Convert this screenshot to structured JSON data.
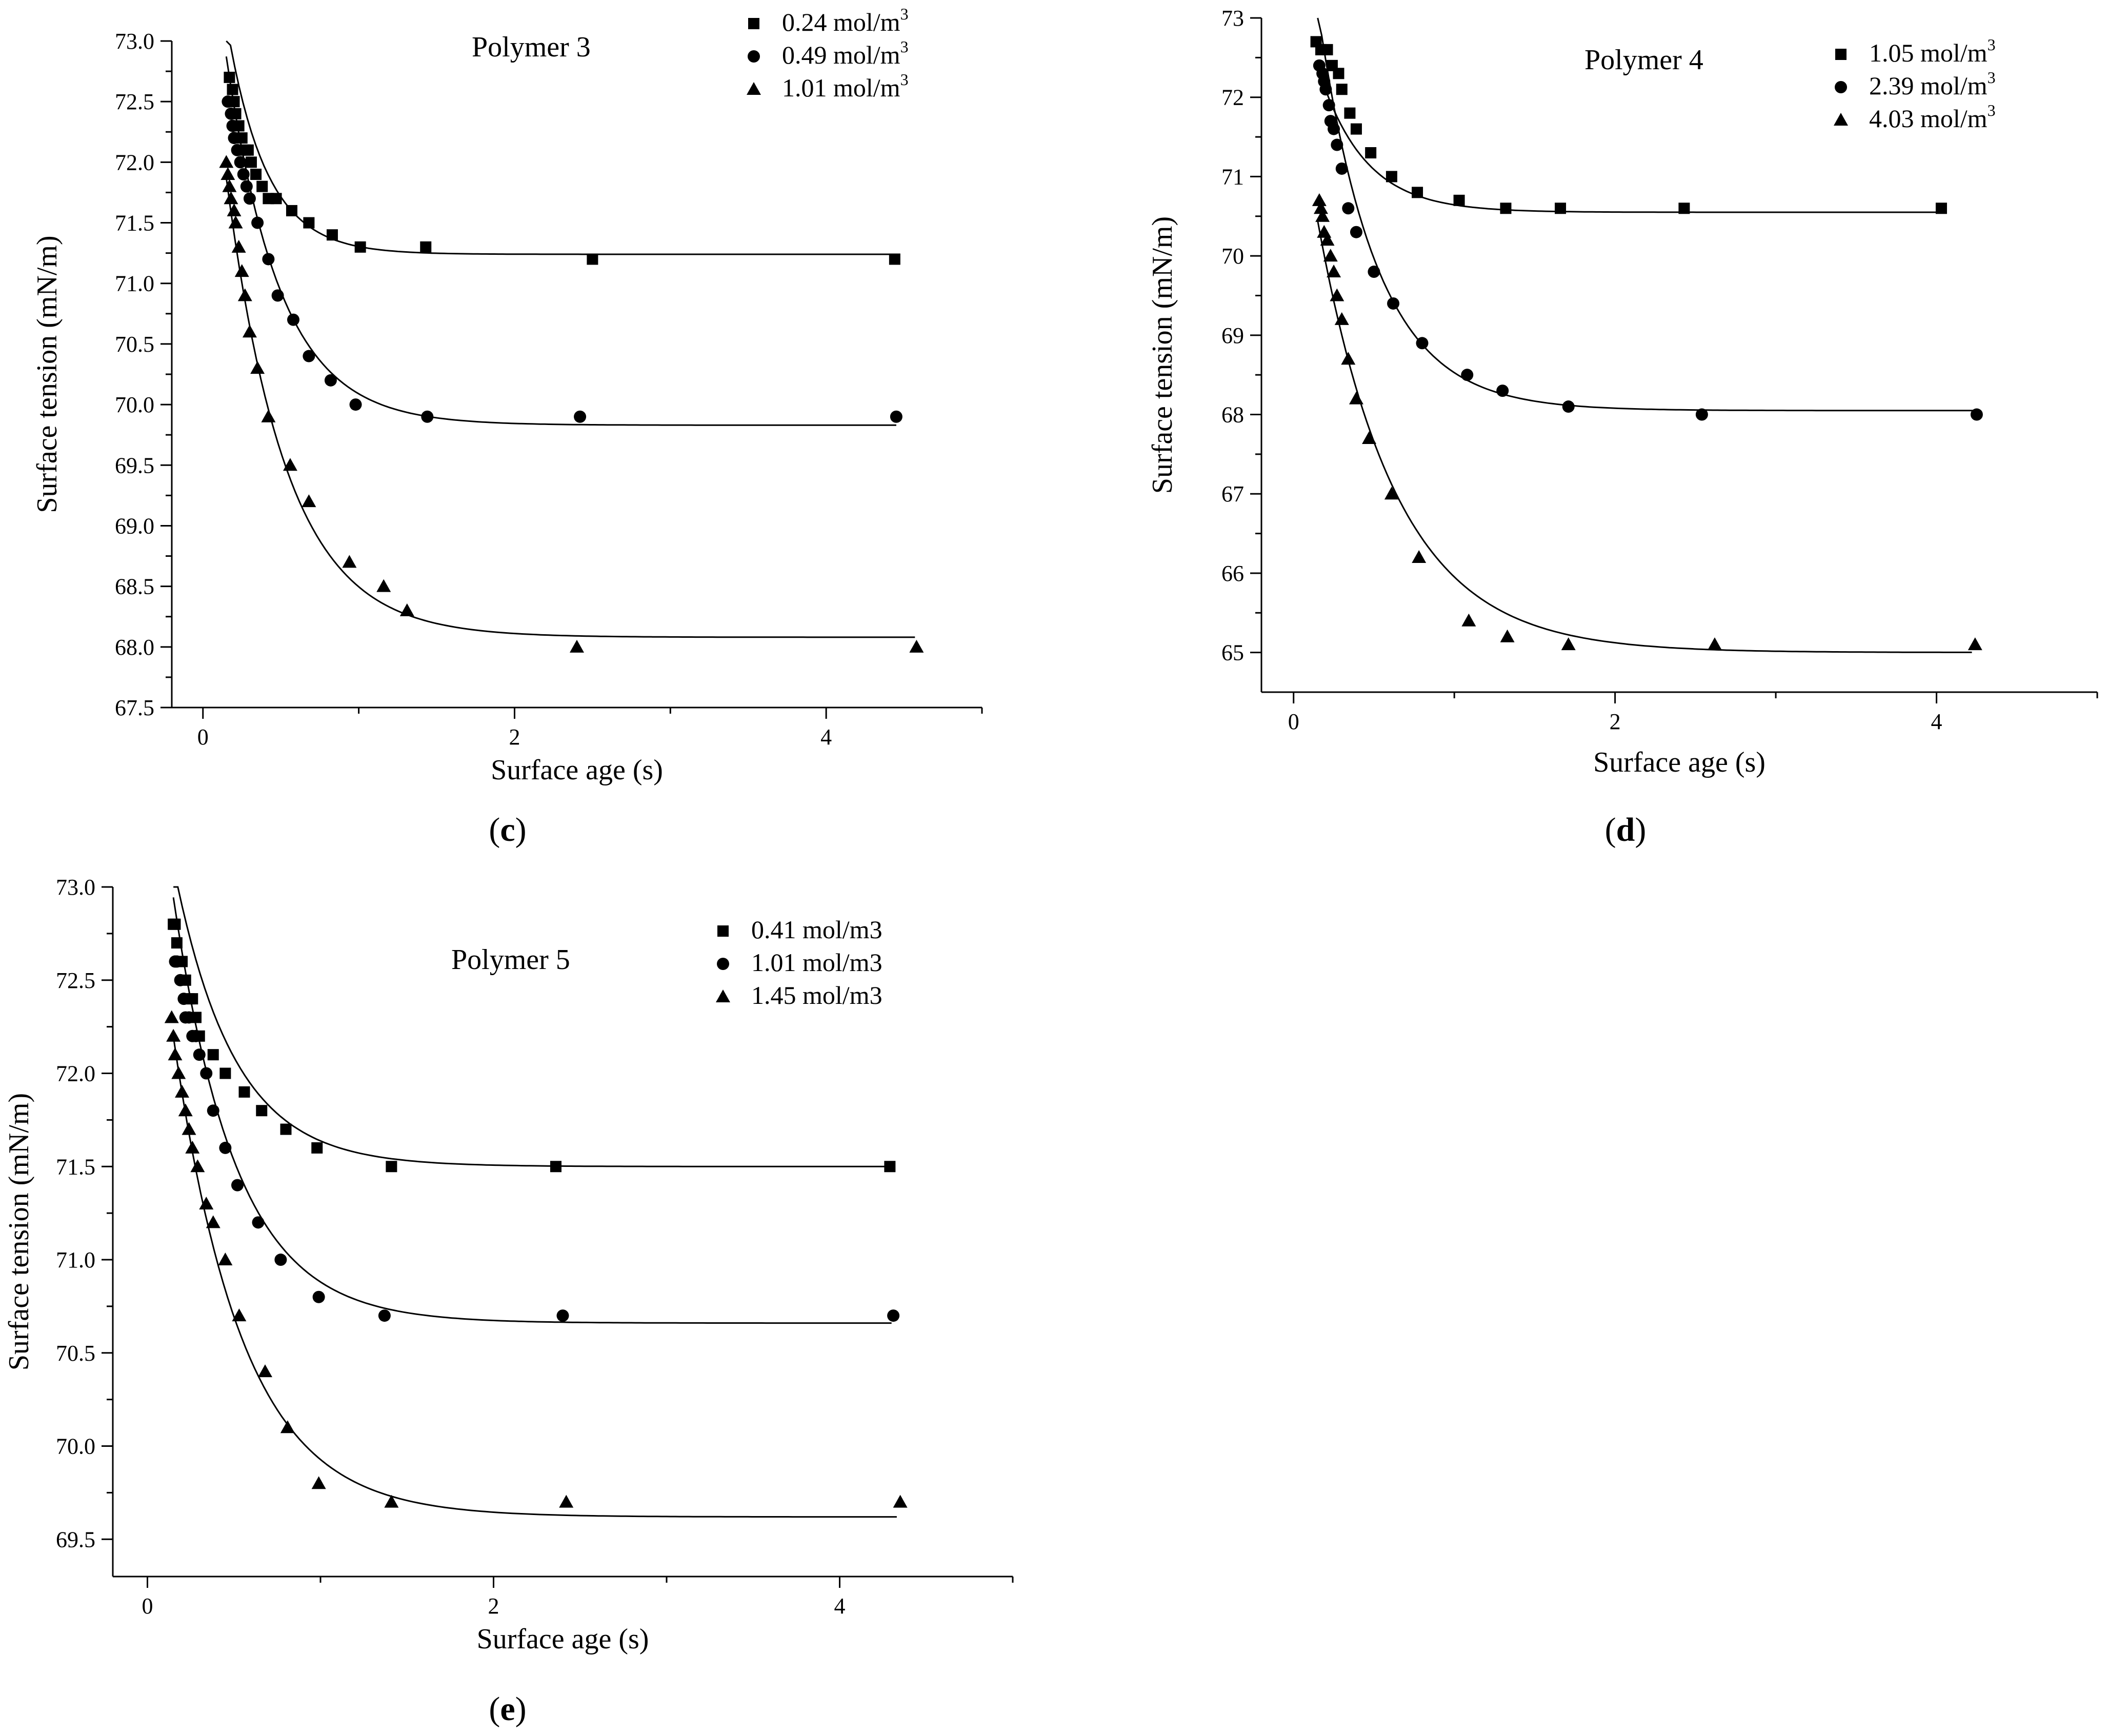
{
  "chart_data": [
    {
      "type": "scatter",
      "panel_label": "c",
      "title": "Polymer 3",
      "xlabel": "Surface age (s)",
      "ylabel": "Surface tension (mN/m)",
      "xlim": [
        -0.2,
        5.0
      ],
      "ylim": [
        67.5,
        73.0
      ],
      "xticks": [
        0,
        2,
        4
      ],
      "yticks": [
        67.5,
        68.0,
        68.5,
        69.0,
        69.5,
        70.0,
        70.5,
        71.0,
        71.5,
        72.0,
        72.5,
        73.0
      ],
      "ytick_format": 1,
      "series": [
        {
          "name": "0.24 mol/m",
          "unit_sup": "3",
          "marker": "square",
          "x": [
            0.17,
            0.19,
            0.2,
            0.21,
            0.23,
            0.25,
            0.27,
            0.29,
            0.31,
            0.34,
            0.38,
            0.42,
            0.47,
            0.57,
            0.68,
            0.83,
            1.01,
            1.43,
            2.5,
            4.44
          ],
          "y": [
            72.7,
            72.6,
            72.5,
            72.4,
            72.3,
            72.2,
            72.1,
            72.1,
            72.0,
            71.9,
            71.8,
            71.7,
            71.7,
            71.6,
            71.5,
            71.4,
            71.3,
            71.3,
            71.2,
            71.2
          ],
          "fit": {
            "plateau": 71.24,
            "amplitude": 3.5,
            "rate": 4.0,
            "x_start": 0.15,
            "x_end": 4.45
          }
        },
        {
          "name": "0.49 mol/m",
          "unit_sup": "3",
          "marker": "circle",
          "x": [
            0.16,
            0.18,
            0.19,
            0.2,
            0.22,
            0.24,
            0.26,
            0.28,
            0.3,
            0.35,
            0.42,
            0.48,
            0.58,
            0.68,
            0.82,
            0.98,
            1.44,
            2.42,
            4.45
          ],
          "y": [
            72.5,
            72.4,
            72.3,
            72.2,
            72.1,
            72.0,
            71.9,
            71.8,
            71.7,
            71.5,
            71.2,
            70.9,
            70.7,
            70.4,
            70.2,
            70.0,
            69.9,
            69.9,
            69.9
          ],
          "fit": {
            "plateau": 69.83,
            "amplitude": 4.7,
            "rate": 2.9,
            "x_start": 0.15,
            "x_end": 4.45
          }
        },
        {
          "name": "1.01 mol/m",
          "unit_sup": "3",
          "marker": "triangle",
          "x": [
            0.15,
            0.16,
            0.17,
            0.18,
            0.2,
            0.21,
            0.23,
            0.25,
            0.27,
            0.3,
            0.35,
            0.42,
            0.56,
            0.68,
            0.94,
            1.16,
            1.31,
            2.4,
            4.58
          ],
          "y": [
            72.0,
            71.9,
            71.8,
            71.7,
            71.6,
            71.5,
            71.3,
            71.1,
            70.9,
            70.6,
            70.3,
            69.9,
            69.5,
            69.2,
            68.7,
            68.5,
            68.3,
            68.0,
            68.0
          ],
          "fit": {
            "plateau": 68.08,
            "amplitude": 5.6,
            "rate": 2.6,
            "x_start": 0.15,
            "x_end": 4.57
          }
        }
      ]
    },
    {
      "type": "scatter",
      "panel_label": "d",
      "title": "Polymer 4",
      "xlabel": "Surface age (s)",
      "ylabel": "Surface tension (mN/m)",
      "xlim": [
        -0.2,
        5.0
      ],
      "ylim": [
        64.5,
        73.0
      ],
      "xticks": [
        0,
        2,
        4
      ],
      "yticks": [
        65,
        66,
        67,
        68,
        69,
        70,
        71,
        72,
        73
      ],
      "ytick_format": 0,
      "series": [
        {
          "name": "1.05 mol/m",
          "unit_sup": "3",
          "marker": "square",
          "x": [
            0.14,
            0.17,
            0.21,
            0.24,
            0.28,
            0.3,
            0.35,
            0.39,
            0.48,
            0.61,
            0.77,
            1.03,
            1.32,
            1.66,
            2.43,
            4.03
          ],
          "y": [
            72.7,
            72.6,
            72.6,
            72.4,
            72.3,
            72.1,
            71.8,
            71.6,
            71.3,
            71.0,
            70.8,
            70.7,
            70.6,
            70.6,
            70.6,
            70.6
          ],
          "fit": {
            "plateau": 70.55,
            "amplitude": 3.1,
            "rate": 3.5,
            "x_start": 0.15,
            "x_end": 4.0
          }
        },
        {
          "name": "2.39 mol/m",
          "unit_sup": "3",
          "marker": "circle",
          "x": [
            0.16,
            0.18,
            0.19,
            0.2,
            0.22,
            0.23,
            0.25,
            0.27,
            0.3,
            0.34,
            0.39,
            0.5,
            0.62,
            0.8,
            1.08,
            1.3,
            1.71,
            2.54,
            4.25
          ],
          "y": [
            72.4,
            72.3,
            72.2,
            72.1,
            71.9,
            71.7,
            71.6,
            71.4,
            71.1,
            70.6,
            70.3,
            69.8,
            69.4,
            68.9,
            68.5,
            68.3,
            68.1,
            68.0,
            68.0
          ],
          "fit": {
            "plateau": 68.05,
            "amplitude": 7.7,
            "rate": 2.78,
            "x_start": 0.15,
            "x_end": 4.25
          }
        },
        {
          "name": "4.03 mol/m",
          "unit_sup": "3",
          "marker": "triangle",
          "x": [
            0.16,
            0.17,
            0.18,
            0.19,
            0.21,
            0.23,
            0.25,
            0.27,
            0.3,
            0.34,
            0.39,
            0.47,
            0.61,
            0.78,
            1.09,
            1.33,
            1.71,
            2.62,
            4.24
          ],
          "y": [
            70.7,
            70.6,
            70.5,
            70.3,
            70.2,
            70.0,
            69.8,
            69.5,
            69.2,
            68.7,
            68.2,
            67.7,
            67.0,
            66.2,
            65.4,
            65.2,
            65.1,
            65.1,
            65.1
          ],
          "fit": {
            "plateau": 65.0,
            "amplitude": 7.4,
            "rate": 2.05,
            "x_start": 0.15,
            "x_end": 4.22
          }
        }
      ]
    },
    {
      "type": "scatter",
      "panel_label": "e",
      "title": "Polymer 5",
      "xlabel": "Surface age (s)",
      "ylabel": "Surface tension (mN/m)",
      "xlim": [
        -0.2,
        5.0
      ],
      "ylim": [
        69.3,
        73.0
      ],
      "xticks": [
        0,
        2,
        4
      ],
      "yticks": [
        69.5,
        70.0,
        70.5,
        71.0,
        71.5,
        72.0,
        72.5,
        73.0
      ],
      "ytick_format": 1,
      "series": [
        {
          "name": "0.41 mol/m3",
          "unit_sup": "",
          "marker": "square",
          "x": [
            0.15,
            0.16,
            0.17,
            0.18,
            0.2,
            0.22,
            0.24,
            0.26,
            0.28,
            0.3,
            0.38,
            0.45,
            0.56,
            0.66,
            0.8,
            0.98,
            1.41,
            2.36,
            4.29
          ],
          "y": [
            72.8,
            72.8,
            72.7,
            72.6,
            72.6,
            72.5,
            72.4,
            72.4,
            72.3,
            72.2,
            72.1,
            72.0,
            71.9,
            71.8,
            71.7,
            71.6,
            71.5,
            71.5,
            71.5
          ],
          "fit": {
            "plateau": 71.5,
            "amplitude": 2.5,
            "rate": 2.9,
            "x_start": 0.15,
            "x_end": 4.28
          }
        },
        {
          "name": "1.01 mol/m3",
          "unit_sup": "",
          "marker": "circle",
          "x": [
            0.16,
            0.17,
            0.19,
            0.21,
            0.22,
            0.24,
            0.26,
            0.28,
            0.3,
            0.34,
            0.38,
            0.45,
            0.52,
            0.64,
            0.77,
            0.99,
            1.37,
            2.4,
            4.31
          ],
          "y": [
            72.6,
            72.6,
            72.5,
            72.4,
            72.3,
            72.3,
            72.2,
            72.2,
            72.1,
            72.0,
            71.8,
            71.6,
            71.4,
            71.2,
            71.0,
            70.8,
            70.7,
            70.7,
            70.7
          ],
          "fit": {
            "plateau": 70.66,
            "amplitude": 3.45,
            "rate": 2.75,
            "x_start": 0.15,
            "x_end": 4.3
          }
        },
        {
          "name": "1.45 mol/m3",
          "unit_sup": "",
          "marker": "triangle",
          "x": [
            0.14,
            0.15,
            0.16,
            0.18,
            0.2,
            0.22,
            0.24,
            0.26,
            0.29,
            0.34,
            0.38,
            0.45,
            0.53,
            0.68,
            0.81,
            0.99,
            1.41,
            2.42,
            4.35
          ],
          "y": [
            72.3,
            72.2,
            72.1,
            72.0,
            71.9,
            71.8,
            71.7,
            71.6,
            71.5,
            71.3,
            71.2,
            71.0,
            70.7,
            70.4,
            70.1,
            69.8,
            69.7,
            69.7,
            69.7
          ],
          "fit": {
            "plateau": 69.62,
            "amplitude": 3.75,
            "rate": 2.5,
            "x_start": 0.15,
            "x_end": 4.33
          }
        }
      ]
    }
  ]
}
